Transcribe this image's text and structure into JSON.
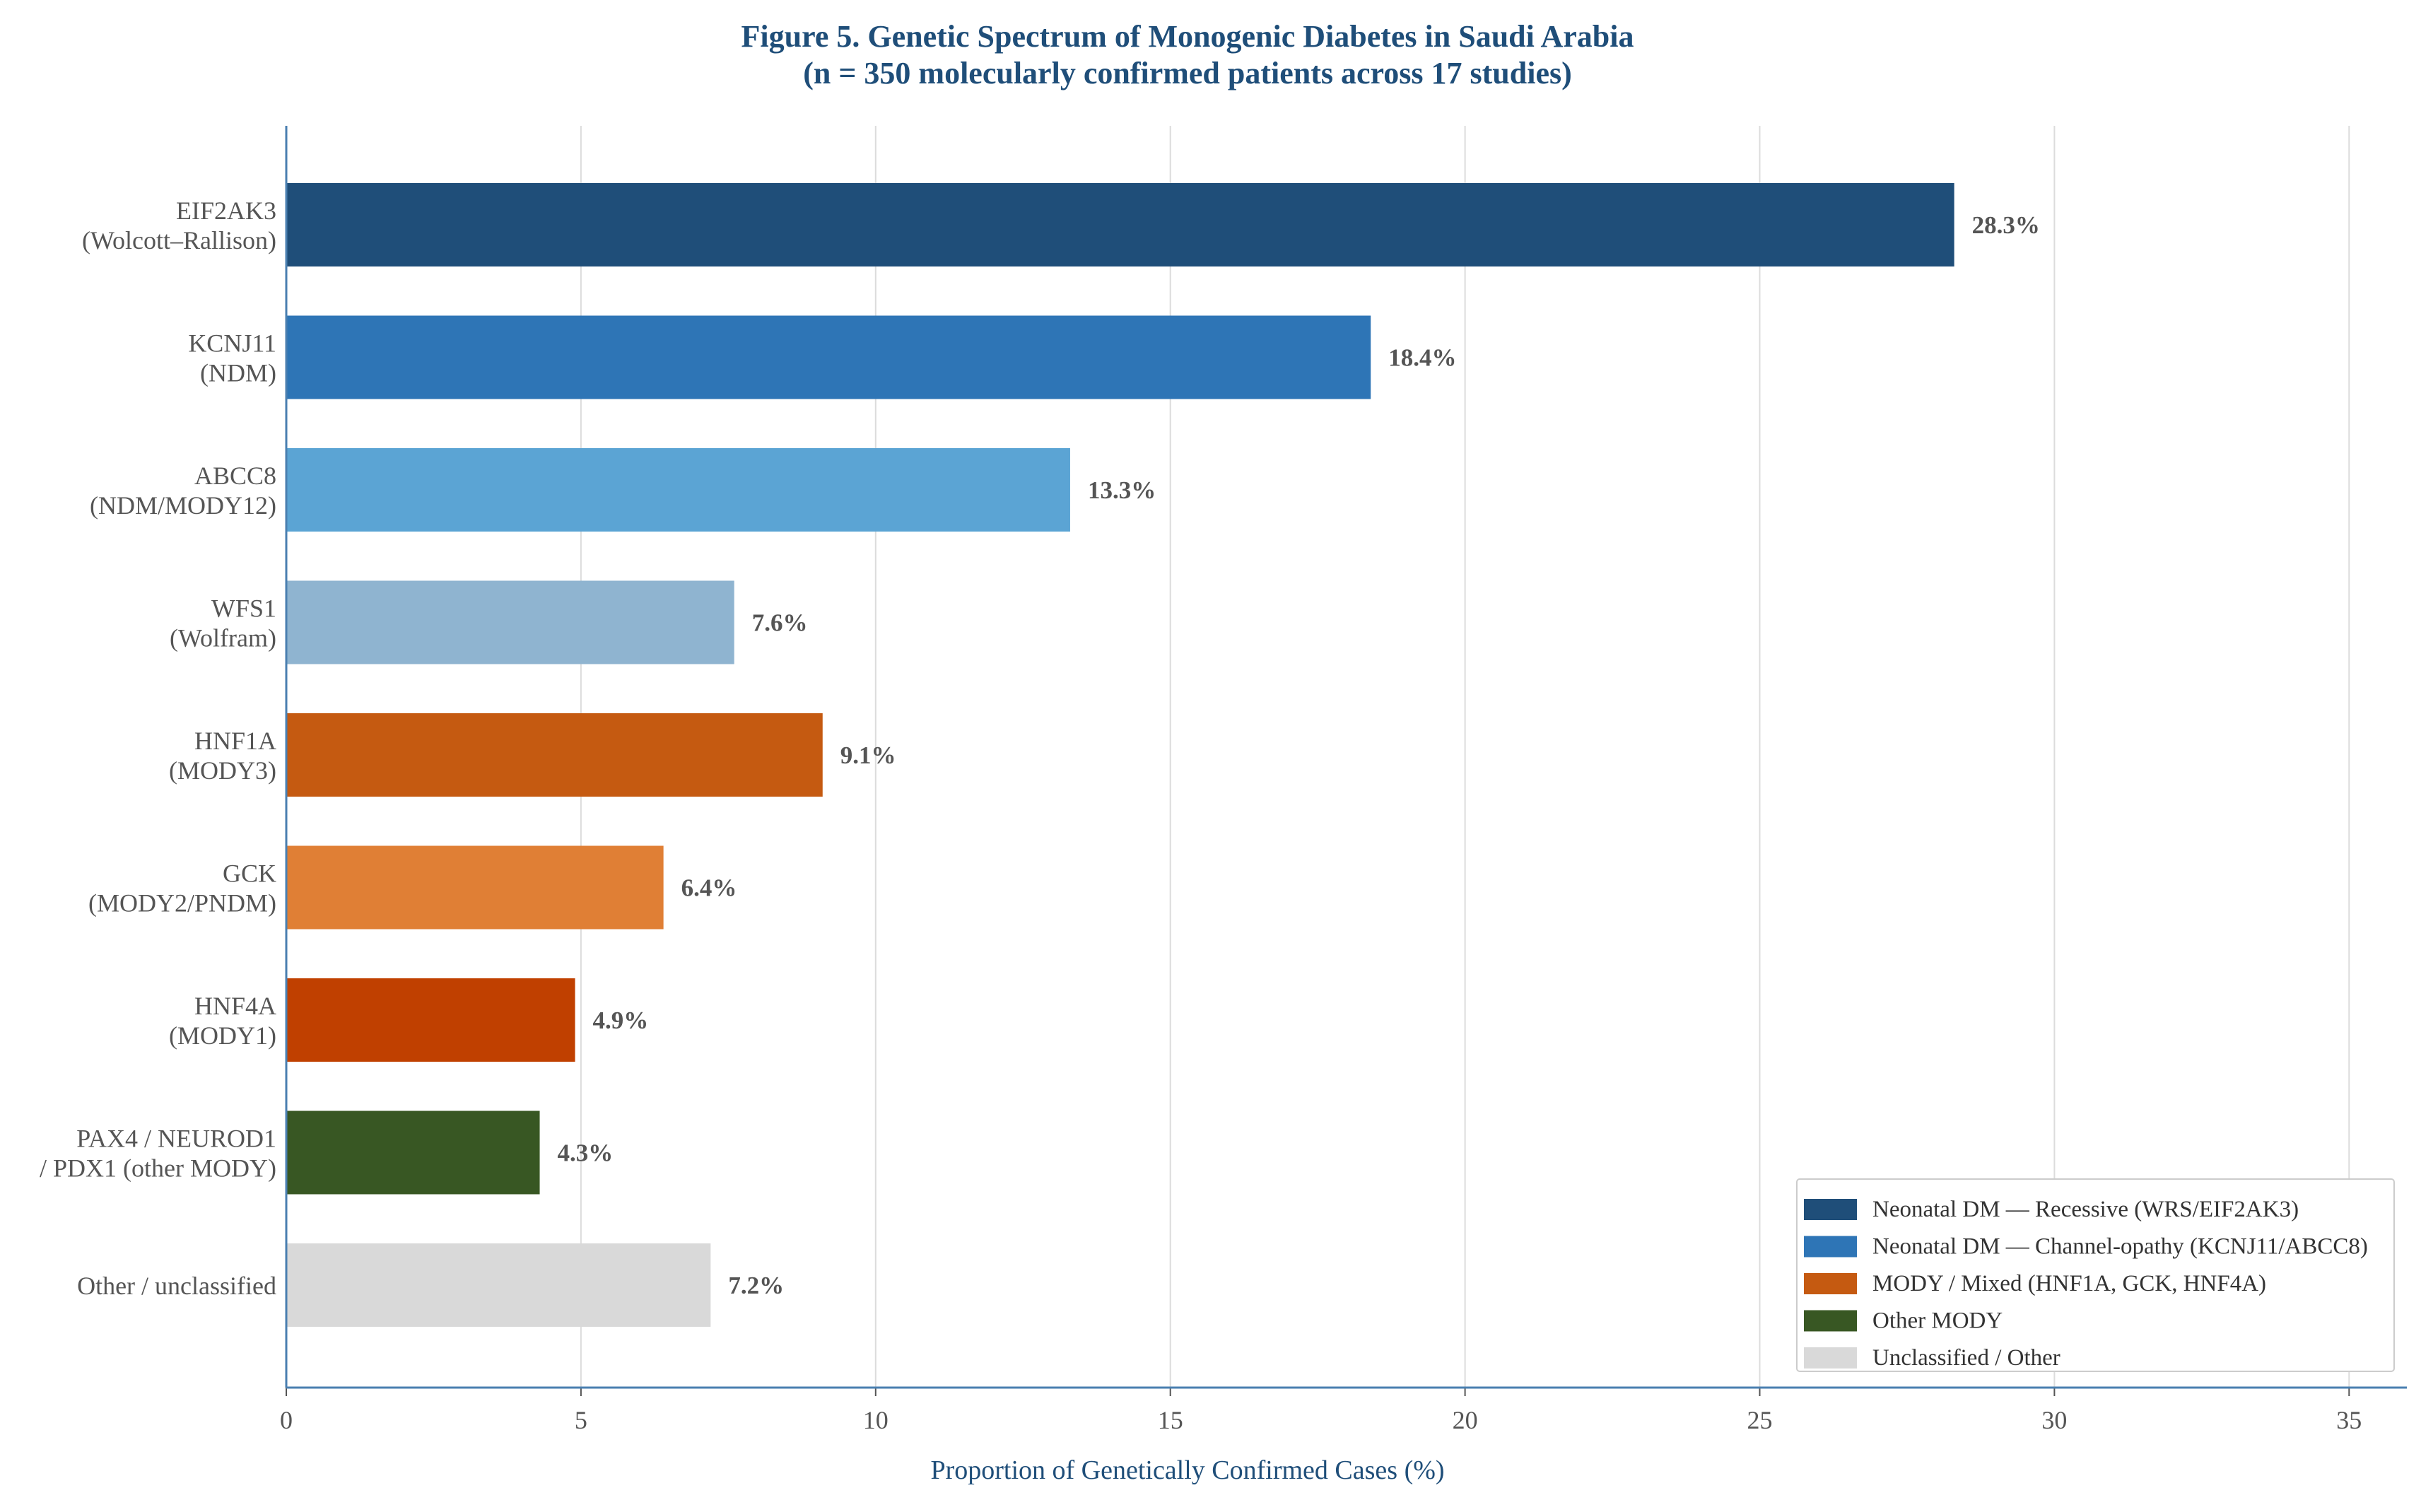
{
  "chart_data": {
    "type": "bar",
    "orientation": "horizontal",
    "title": "Figure 5. Genetic Spectrum of Monogenic Diabetes in Saudi Arabia",
    "subtitle": "(n = 350 molecularly confirmed patients across 17 studies)",
    "xlabel": "Proportion of Genetically Confirmed Cases (%)",
    "ylabel": "",
    "xlim": [
      0,
      36
    ],
    "xticks": [
      0,
      5,
      10,
      15,
      20,
      25,
      30,
      35
    ],
    "grid": "vertical",
    "legend_position": "bottom-right",
    "categories": [
      {
        "line1": "EIF2AK3",
        "line2": "(Wolcott–Rallison)"
      },
      {
        "line1": "KCNJ11",
        "line2": "(NDM)"
      },
      {
        "line1": "ABCC8",
        "line2": "(NDM/MODY12)"
      },
      {
        "line1": "WFS1",
        "line2": "(Wolfram)"
      },
      {
        "line1": "HNF1A",
        "line2": "(MODY3)"
      },
      {
        "line1": "GCK",
        "line2": "(MODY2/PNDM)"
      },
      {
        "line1": "HNF4A",
        "line2": "(MODY1)"
      },
      {
        "line1": "PAX4 / NEUROD1",
        "line2": "/ PDX1 (other MODY)"
      },
      {
        "line1": "Other / unclassified",
        "line2": ""
      }
    ],
    "values": [
      28.3,
      18.4,
      13.3,
      7.6,
      9.1,
      6.4,
      4.9,
      4.3,
      7.2
    ],
    "value_labels": [
      "28.3%",
      "18.4%",
      "13.3%",
      "7.6%",
      "9.1%",
      "6.4%",
      "4.9%",
      "4.3%",
      "7.2%"
    ],
    "bar_colors": [
      "#1f4e79",
      "#2e75b6",
      "#5ba4d4",
      "#8fb4d0",
      "#c55a11",
      "#e07f35",
      "#c04000",
      "#385723",
      "#d9d9d9"
    ],
    "legend": [
      {
        "label": "Neonatal DM — Recessive (WRS/EIF2AK3)",
        "color": "#1f4e79"
      },
      {
        "label": "Neonatal DM — Channel-opathy (KCNJ11/ABCC8)",
        "color": "#2e75b6"
      },
      {
        "label": "MODY / Mixed (HNF1A, GCK, HNF4A)",
        "color": "#c55a11"
      },
      {
        "label": "Other MODY",
        "color": "#385723"
      },
      {
        "label": "Unclassified / Other",
        "color": "#d9d9d9"
      }
    ]
  }
}
